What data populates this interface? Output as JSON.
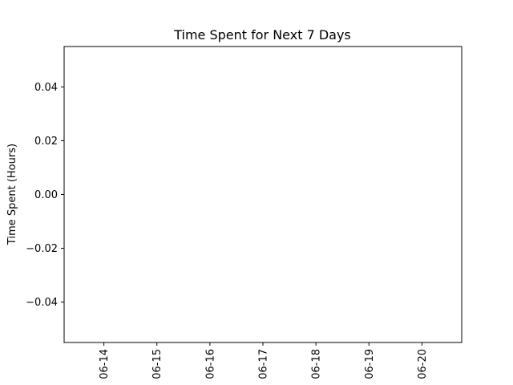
{
  "chart_data": {
    "type": "bar",
    "title": "Time Spent for Next 7 Days",
    "xlabel": "",
    "ylabel": "Time Spent (Hours)",
    "categories": [
      "06-14",
      "06-15",
      "06-16",
      "06-17",
      "06-18",
      "06-19",
      "06-20"
    ],
    "values": [
      0,
      0,
      0,
      0,
      0,
      0,
      0
    ],
    "ylim": [
      -0.055,
      0.055
    ],
    "yticks": [
      -0.04,
      -0.02,
      0.0,
      0.02,
      0.04
    ],
    "ytick_labels": [
      "−0.04",
      "−0.02",
      "0.00",
      "0.02",
      "0.04"
    ],
    "grid": false,
    "legend": null
  }
}
